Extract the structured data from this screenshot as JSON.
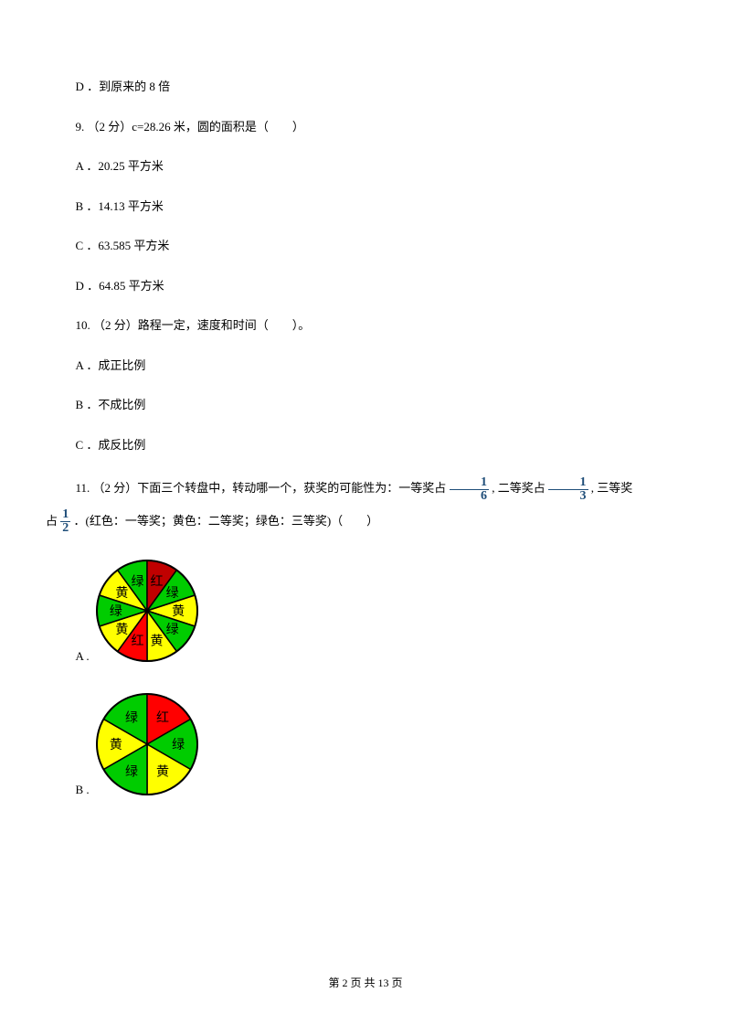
{
  "prev_option": "D ．到原来的 8 倍",
  "q9": {
    "stem": "9. （2 分）c=28.26 米，圆的面积是（　　）",
    "A": "A ．20.25 平方米",
    "B": "B ．14.13 平方米",
    "C": "C ．63.585 平方米",
    "D": "D ．64.85 平方米"
  },
  "q10": {
    "stem": "10. （2 分）路程一定，速度和时间（　　）。",
    "A": "A ．成正比例",
    "B": "B ．不成比例",
    "C": "C ．成反比例"
  },
  "q11": {
    "prefix": "11. （2 分）下面三个转盘中，转动哪一个，获奖的可能性为：一等奖占 ",
    "mid1": " , 二等奖占 ",
    "mid2": " , 三等奖",
    "line2a": "占 ",
    "line2b": " ．(红色：一等奖；黄色：二等奖；绿色：三等奖)（　　）",
    "optA": "A .",
    "optB": "B ."
  },
  "footer": {
    "a": "第 ",
    "b": "2",
    "c": " 页 共 ",
    "d": "13",
    "e": " 页"
  },
  "colors": {
    "red": "#ff0000",
    "darkred": "#c00000",
    "yellow": "#ffff00",
    "green": "#00cc00",
    "stroke": "#000000",
    "text": "#000000",
    "frac": "#1f4e79"
  },
  "spinnerA": {
    "radius": 55,
    "slices": 10,
    "sectors": [
      {
        "color": "#ffff00",
        "label": "黄"
      },
      {
        "color": "#00cc00",
        "label": "绿"
      },
      {
        "color": "#c00000",
        "label": "红"
      },
      {
        "color": "#00cc00",
        "label": "绿"
      },
      {
        "color": "#ffff00",
        "label": "黄"
      },
      {
        "color": "#00cc00",
        "label": "绿"
      },
      {
        "color": "#ffff00",
        "label": "黄"
      },
      {
        "color": "#ff0000",
        "label": "红"
      },
      {
        "color": "#ffff00",
        "label": "黄"
      },
      {
        "color": "#00cc00",
        "label": "绿"
      }
    ]
  },
  "spinnerB": {
    "radius": 55,
    "slices": 6,
    "sectors": [
      {
        "color": "#00cc00",
        "label": "绿"
      },
      {
        "color": "#ff0000",
        "label": "红"
      },
      {
        "color": "#00cc00",
        "label": "绿"
      },
      {
        "color": "#ffff00",
        "label": "黄"
      },
      {
        "color": "#00cc00",
        "label": "绿"
      },
      {
        "color": "#ffff00",
        "label": "黄"
      }
    ]
  }
}
